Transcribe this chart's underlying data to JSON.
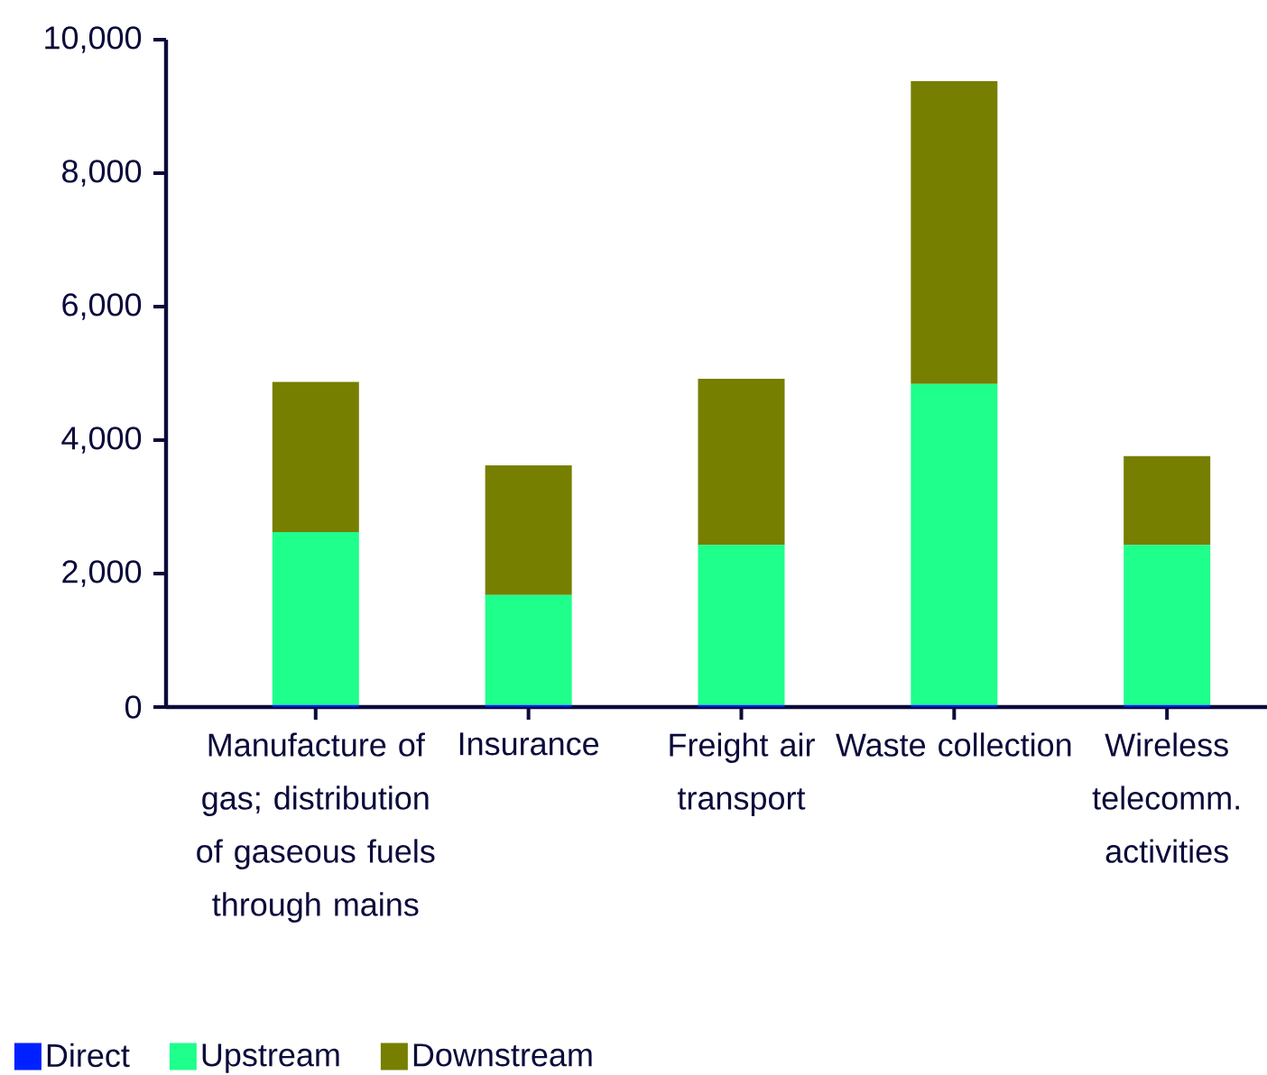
{
  "chart_data": {
    "type": "bar",
    "stacked": true,
    "categories": [
      "Manufacture of gas; distribution of gaseous fuels through mains",
      "Insurance",
      "Freight air transport",
      "Waste collection",
      "Wireless telecomm. activities"
    ],
    "series": [
      {
        "name": "Direct",
        "color": "#0021ff",
        "values": [
          30,
          30,
          30,
          30,
          30
        ]
      },
      {
        "name": "Upstream",
        "color": "#1eff8c",
        "values": [
          2590,
          1650,
          2400,
          4810,
          2400
        ]
      },
      {
        "name": "Downstream",
        "color": "#767f00",
        "values": [
          2250,
          1940,
          2490,
          4540,
          1330
        ]
      }
    ],
    "ylim": [
      0,
      10000
    ],
    "yticks": [
      0,
      {
        "value": 2000,
        "label": "2,000"
      },
      {
        "value": 4000,
        "label": "4,000"
      },
      {
        "value": 6000,
        "label": "6,000"
      },
      {
        "value": 8000,
        "label": "8,000"
      },
      {
        "value": 10000,
        "label": "10,000"
      }
    ],
    "grid": false,
    "legend": "bottom left"
  }
}
